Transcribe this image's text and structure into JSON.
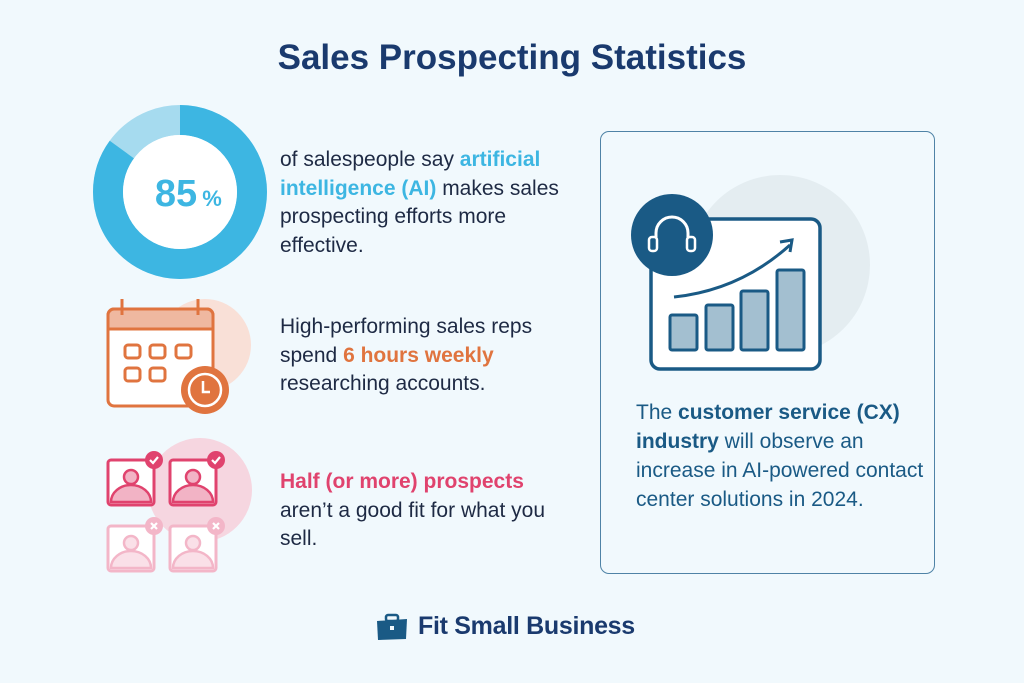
{
  "title": "Sales Prospecting Statistics",
  "stats": [
    {
      "value": "85",
      "unit": "%",
      "percent": 85,
      "text_before": "of salespeople say ",
      "highlight": "artificial intelligence (AI)",
      "text_after": " makes sales prospecting efforts more effective.",
      "icon": "donut-chart-icon",
      "color": "#3db6e2"
    },
    {
      "text_before": "High-performing sales reps spend ",
      "highlight": "6 hours weekly",
      "text_after": " researching accounts.",
      "icon": "calendar-clock-icon",
      "color": "#e0743f"
    },
    {
      "highlight": "Half (or more) prospects",
      "text_after": " aren’t a good fit for what you sell.",
      "icon": "prospect-profiles-icon",
      "color": "#e0436e"
    }
  ],
  "feature": {
    "text_before": "The ",
    "highlight": "customer service (CX) industry",
    "text_after": " will observe an increase in AI-powered contact center solutions in 2024.",
    "icon": "headset-growth-chart-icon",
    "color": "#1a5a85"
  },
  "brand": {
    "name": "Fit Small Business",
    "icon": "briefcase-icon"
  }
}
